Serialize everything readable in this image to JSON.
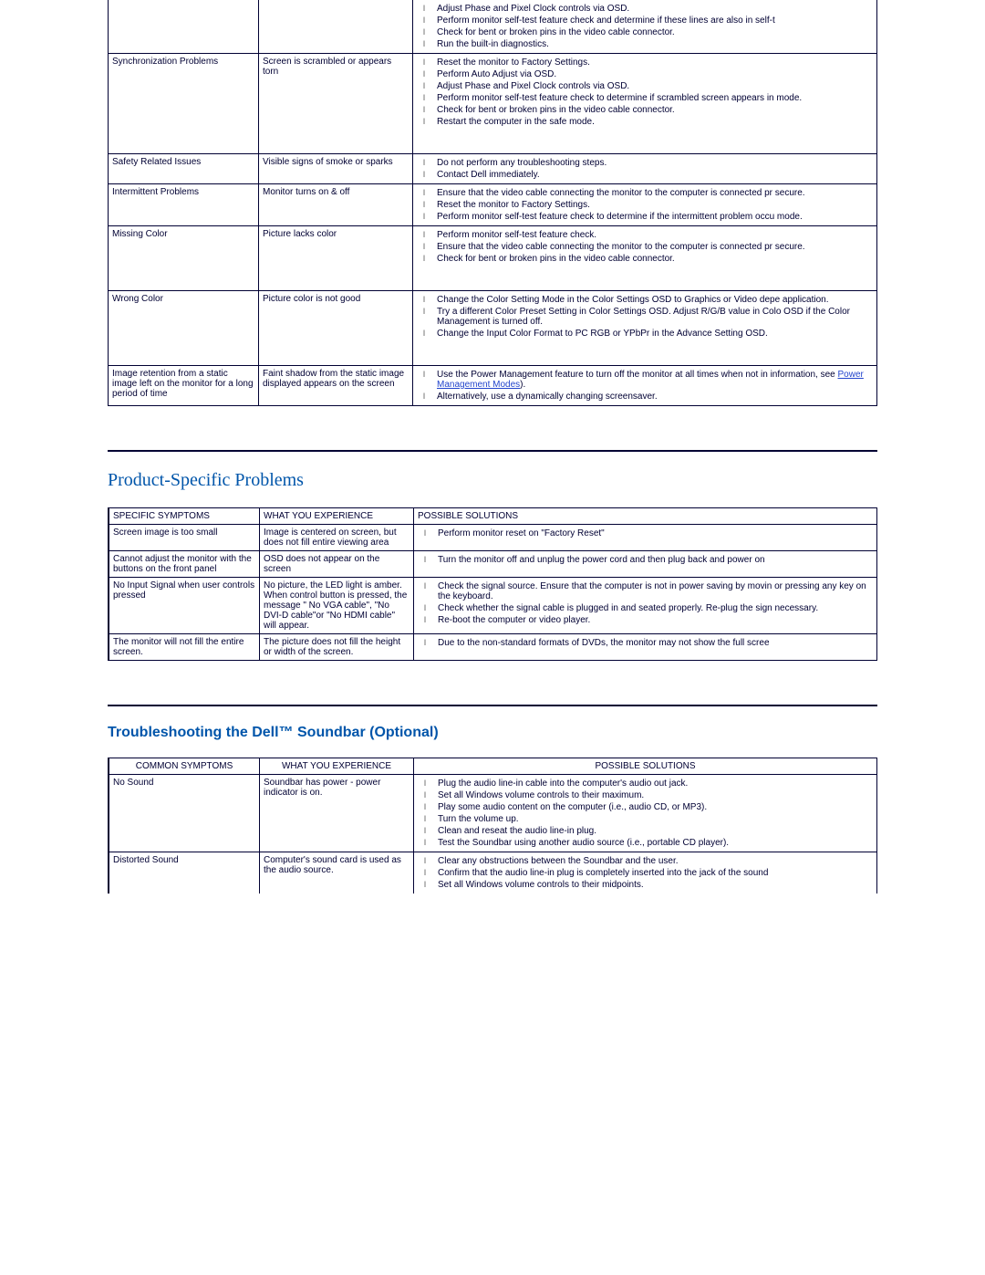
{
  "table1": {
    "rows": [
      {
        "symptom": "",
        "experience": "",
        "solutions": [
          "Adjust Phase and Pixel Clock controls via OSD.",
          "Perform monitor self-test feature check and determine if these lines are also in self-t",
          "Check for bent or broken pins in the video cable connector.",
          "Run the built-in diagnostics."
        ],
        "no_top_border": true
      },
      {
        "symptom": "Synchronization Problems",
        "experience": "Screen is scrambled or appears torn",
        "solutions": [
          "Reset the monitor to Factory Settings.",
          "Perform Auto Adjust via OSD.",
          "Adjust Phase and Pixel Clock controls via OSD.",
          "Perform monitor self-test feature check to determine if scrambled screen appears in mode.",
          "Check for bent or broken pins in the video cable connector.",
          "Restart the computer in the safe mode."
        ],
        "pad_bottom": true
      },
      {
        "symptom": "Safety Related Issues",
        "experience": "Visible signs of smoke or sparks",
        "solutions": [
          "Do not perform any troubleshooting steps.",
          "Contact Dell immediately."
        ]
      },
      {
        "symptom": "Intermittent Problems",
        "experience": "Monitor turns on & off",
        "solutions": [
          "Ensure that the video cable connecting the monitor to the computer is connected pr secure.",
          "Reset the monitor to Factory Settings.",
          "Perform monitor self-test feature check to determine if the intermittent problem occu mode."
        ]
      },
      {
        "symptom": "Missing Color",
        "experience": "Picture lacks color",
        "solutions": [
          "Perform monitor self-test feature check.",
          "Ensure that the video cable connecting the monitor to the computer is connected pr secure.",
          "Check for bent or broken pins in the video cable connector."
        ],
        "pad_bottom": true
      },
      {
        "symptom": "Wrong Color",
        "experience": "Picture color is not good",
        "solutions": [
          "Change the Color Setting Mode in the Color Settings OSD to Graphics or Video depe application.",
          "Try a different Color Preset Setting in Color Settings OSD. Adjust R/G/B value in Colo OSD if the Color Management is turned off.",
          "Change the Input Color Format to PC RGB or YPbPr in the Advance Setting OSD."
        ],
        "pad_bottom": true
      },
      {
        "symptom": "Image retention from a static image left on the monitor for a long period of time",
        "experience": "Faint shadow from the static image displayed appears on the screen",
        "solutions": [
          "Use the Power Management feature to turn off the monitor at all times when not in information, see <link>Power Management Modes</link>).",
          "Alternatively, use a dynamically changing screensaver."
        ]
      }
    ]
  },
  "section2_title": "Product-Specific Problems",
  "table2": {
    "headers": [
      "SPECIFIC SYMPTOMS",
      "WHAT YOU EXPERIENCE",
      "POSSIBLE SOLUTIONS"
    ],
    "rows": [
      {
        "symptom": "Screen image is too small",
        "experience": "Image is centered on screen, but does not fill entire viewing area",
        "solutions": [
          "Perform monitor reset on \"Factory Reset\""
        ]
      },
      {
        "symptom": "Cannot adjust the monitor with the buttons on the front panel",
        "experience": "OSD does not appear on the screen",
        "solutions": [
          "Turn the monitor off and unplug the power cord and then plug back and power on"
        ]
      },
      {
        "symptom": "No Input Signal when user controls pressed",
        "experience": "No picture, the LED light is amber. When control button is pressed, the message \" No VGA cable\", \"No DVI-D cable\"or \"No HDMI cable\" will appear.",
        "solutions": [
          "Check the signal source. Ensure that the computer is not in power saving by movin or pressing any key on the keyboard.",
          "Check whether the signal cable is plugged in and seated properly.  Re-plug the sign necessary.",
          "Re-boot the computer or video player."
        ]
      },
      {
        "symptom": "The monitor will not fill the entire screen.",
        "experience": "The picture does not fill the height or width of the screen.",
        "solutions": [
          "Due to the non-standard formats of DVDs, the monitor may not show the full scree"
        ]
      }
    ]
  },
  "section3_title": "Troubleshooting the Dell™ Soundbar (Optional)",
  "table3": {
    "headers": [
      "COMMON SYMPTOMS",
      "WHAT YOU EXPERIENCE",
      "POSSIBLE SOLUTIONS"
    ],
    "rows": [
      {
        "symptom": "No Sound",
        "experience": "Soundbar has power - power indicator is on.",
        "solutions": [
          "Plug the audio line-in cable into the computer's audio out jack.",
          "Set all Windows volume controls to their maximum.",
          "Play some audio content on the computer (i.e., audio CD, or MP3).",
          "Turn the volume up.",
          "Clean and reseat the audio line-in plug.",
          "Test the Soundbar using another audio source (i.e., portable CD player)."
        ]
      },
      {
        "symptom": "Distorted Sound",
        "experience": "Computer's sound card is used as the audio source.",
        "solutions": [
          "Clear any obstructions between the Soundbar and the user.",
          "Confirm that the audio line-in plug is completely inserted into the jack of the sound",
          "Set all Windows volume controls to their midpoints."
        ],
        "no_bottom_border": true
      }
    ]
  }
}
